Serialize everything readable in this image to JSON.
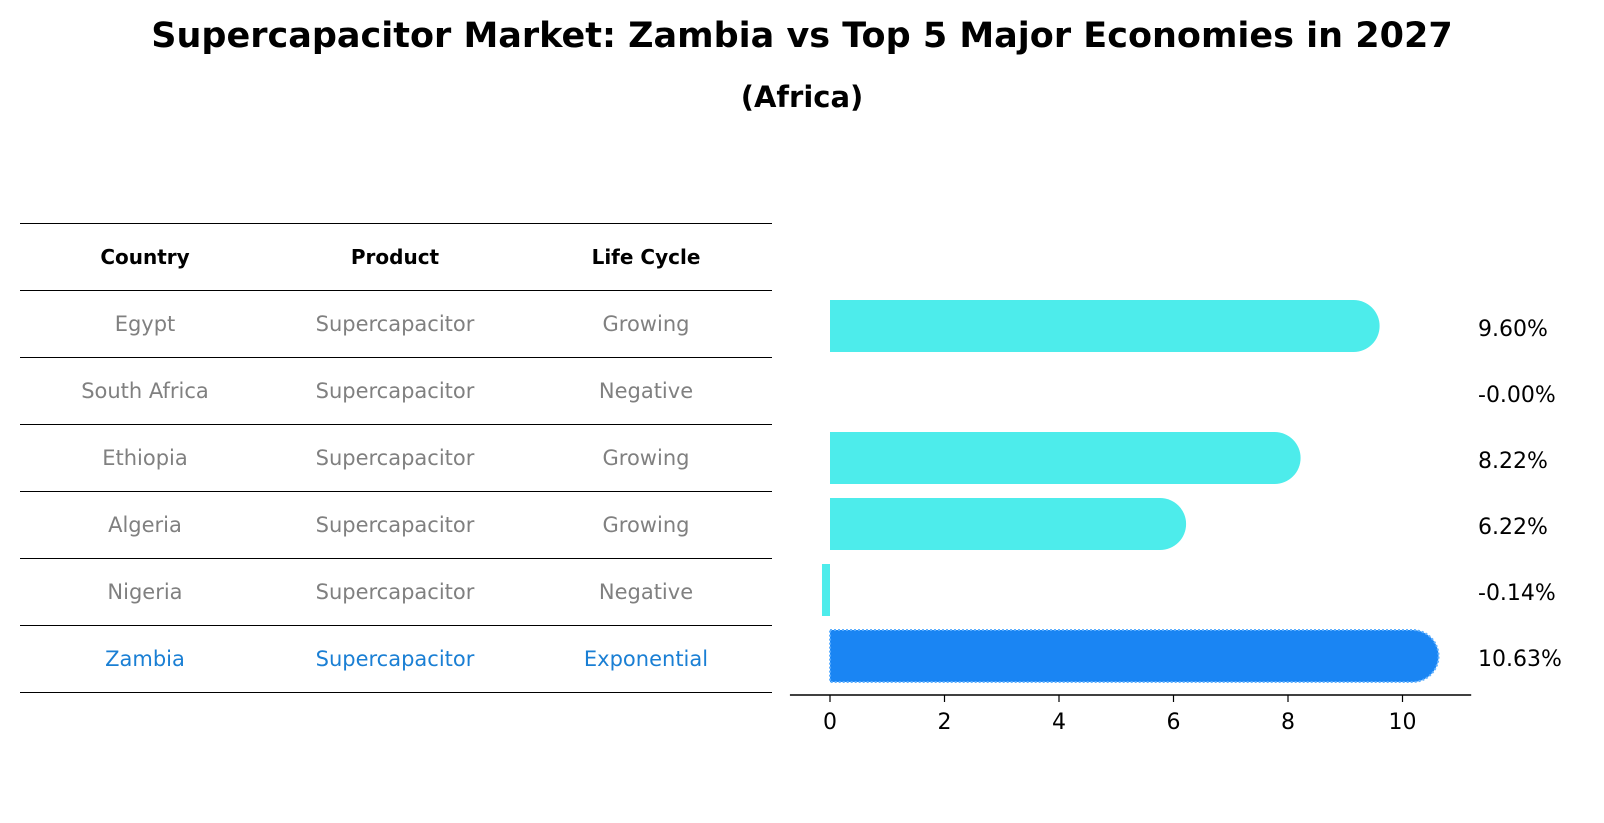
{
  "title": "Supercapacitor Market: Zambia vs Top 5 Major Economies in 2027",
  "subtitle": "(Africa)",
  "table": {
    "headers": [
      "Country",
      "Product",
      "Life Cycle"
    ],
    "rows": [
      [
        "Egypt",
        "Supercapacitor",
        "Growing"
      ],
      [
        "South Africa",
        "Supercapacitor",
        "Negative"
      ],
      [
        "Ethiopia",
        "Supercapacitor",
        "Growing"
      ],
      [
        "Algeria",
        "Supercapacitor",
        "Growing"
      ],
      [
        "Nigeria",
        "Supercapacitor",
        "Negative"
      ],
      [
        "Zambia",
        "Supercapacitor",
        "Exponential"
      ]
    ]
  },
  "colors": {
    "bar": "#4deceb",
    "highlight": "#1a85f3",
    "highlight_text": "#1a7fd4",
    "muted_text": "#808080"
  },
  "chart_data": {
    "type": "bar",
    "orientation": "horizontal",
    "categories": [
      "Egypt",
      "South Africa",
      "Ethiopia",
      "Algeria",
      "Nigeria",
      "Zambia"
    ],
    "values": [
      9.6,
      -0.0,
      8.22,
      6.22,
      -0.14,
      10.63
    ],
    "labels": [
      "9.60%",
      "-0.00%",
      "8.22%",
      "6.22%",
      "-0.14%",
      "10.63%"
    ],
    "highlight": "Zambia",
    "xticks": [
      0,
      2,
      4,
      6,
      8,
      10
    ],
    "xlim": [
      -0.7,
      11.2
    ],
    "title": "",
    "xlabel": "",
    "ylabel": ""
  }
}
